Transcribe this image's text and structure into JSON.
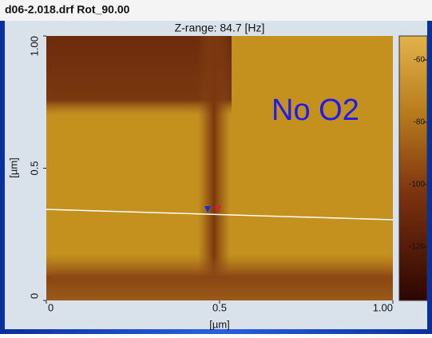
{
  "chart_data": {
    "type": "image",
    "title": "d06-2.018.drf Rot_90.00",
    "subtitle": "Z-range:  84.7 [Hz]",
    "annotation": "No O2",
    "annotation_color": "#1c1cf0",
    "xlabel": "[µm]",
    "ylabel": "[µm]",
    "xlim": [
      0,
      1
    ],
    "ylim": [
      0,
      1
    ],
    "xticks": [
      0,
      0.5,
      {
        "value": 1,
        "label": "1.00"
      }
    ],
    "yticks": [
      0,
      0.5,
      {
        "value": 1,
        "label": "1.00"
      }
    ],
    "clim": [
      -137.2,
      -52.3
    ],
    "cticks": [
      -60,
      -80,
      -100,
      -120
    ]
  }
}
